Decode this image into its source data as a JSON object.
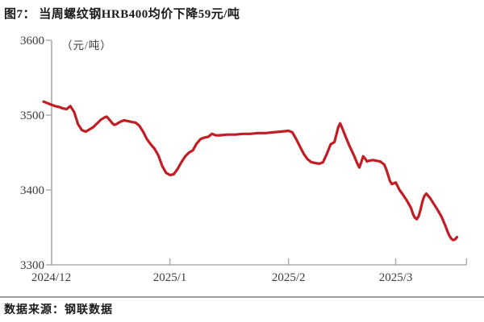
{
  "title": "图7： 当周螺纹钢HRB400均价下降59元/吨",
  "footer": {
    "source": "数据来源：钢联数据"
  },
  "chart_data": {
    "type": "line",
    "title": "当周螺纹钢HRB400均价下降59元/吨",
    "unit_label": "（元/吨）",
    "ylabel": "元/吨",
    "ylim": [
      3300,
      3600
    ],
    "yticks": [
      3600,
      3500,
      3400,
      3300
    ],
    "xticks": [
      {
        "label": "2024/12",
        "day": 0
      },
      {
        "label": "2025/1",
        "day": 31
      },
      {
        "label": "2025/2",
        "day": 62
      },
      {
        "label": "2025/3",
        "day": 90
      }
    ],
    "axis_end_day": 108.5,
    "grid": false,
    "legend": "none",
    "line_color": "#c01e24",
    "axis_color": "#ababab",
    "tick_label_color": "#3c3c3c",
    "series": [
      {
        "name": "螺纹钢HRB400均价(元/吨)",
        "points": [
          [
            -2,
            3518
          ],
          [
            -1,
            3516
          ],
          [
            0,
            3514
          ],
          [
            1,
            3512
          ],
          [
            2,
            3511
          ],
          [
            3,
            3509
          ],
          [
            4,
            3508
          ],
          [
            5,
            3512
          ],
          [
            6,
            3504
          ],
          [
            7,
            3488
          ],
          [
            8,
            3480
          ],
          [
            9,
            3478
          ],
          [
            10,
            3481
          ],
          [
            11,
            3484
          ],
          [
            12,
            3489
          ],
          [
            13,
            3494
          ],
          [
            14,
            3497
          ],
          [
            14.5,
            3498
          ],
          [
            15,
            3495
          ],
          [
            16,
            3489
          ],
          [
            16.5,
            3487
          ],
          [
            17,
            3488
          ],
          [
            18,
            3491
          ],
          [
            19,
            3493
          ],
          [
            20,
            3492
          ],
          [
            21,
            3491
          ],
          [
            22,
            3490
          ],
          [
            23,
            3486
          ],
          [
            24,
            3478
          ],
          [
            25,
            3468
          ],
          [
            26,
            3461
          ],
          [
            27,
            3455
          ],
          [
            28,
            3446
          ],
          [
            29,
            3432
          ],
          [
            30,
            3423
          ],
          [
            31,
            3420
          ],
          [
            32,
            3421
          ],
          [
            33,
            3428
          ],
          [
            34,
            3437
          ],
          [
            35,
            3445
          ],
          [
            36,
            3450
          ],
          [
            37,
            3453
          ],
          [
            38,
            3462
          ],
          [
            39,
            3468
          ],
          [
            40,
            3470
          ],
          [
            41,
            3471
          ],
          [
            42,
            3475
          ],
          [
            43,
            3473
          ],
          [
            44,
            3473
          ],
          [
            46,
            3474
          ],
          [
            48,
            3474
          ],
          [
            50,
            3475
          ],
          [
            52,
            3475
          ],
          [
            54,
            3476
          ],
          [
            56,
            3476
          ],
          [
            58,
            3477
          ],
          [
            60,
            3478
          ],
          [
            62,
            3479
          ],
          [
            63,
            3477
          ],
          [
            64,
            3468
          ],
          [
            65,
            3458
          ],
          [
            66,
            3448
          ],
          [
            67,
            3441
          ],
          [
            68,
            3437
          ],
          [
            69,
            3436
          ],
          [
            70,
            3435
          ],
          [
            71,
            3437
          ],
          [
            72,
            3448
          ],
          [
            73,
            3461
          ],
          [
            74,
            3464
          ],
          [
            75,
            3484
          ],
          [
            75.5,
            3489
          ],
          [
            76,
            3483
          ],
          [
            77,
            3470
          ],
          [
            78,
            3458
          ],
          [
            79,
            3447
          ],
          [
            80,
            3435
          ],
          [
            80.5,
            3430
          ],
          [
            81,
            3437
          ],
          [
            81.5,
            3445
          ],
          [
            82,
            3442
          ],
          [
            82.5,
            3438
          ],
          [
            83,
            3439
          ],
          [
            84,
            3440
          ],
          [
            85,
            3439
          ],
          [
            86,
            3438
          ],
          [
            87,
            3434
          ],
          [
            87.5,
            3428
          ],
          [
            88,
            3420
          ],
          [
            88.5,
            3412
          ],
          [
            89,
            3408
          ],
          [
            90,
            3410
          ],
          [
            91,
            3400
          ],
          [
            92,
            3393
          ],
          [
            93,
            3385
          ],
          [
            94,
            3376
          ],
          [
            94.5,
            3368
          ],
          [
            95,
            3363
          ],
          [
            95.5,
            3361
          ],
          [
            96,
            3365
          ],
          [
            96.5,
            3374
          ],
          [
            97,
            3385
          ],
          [
            97.5,
            3392
          ],
          [
            98,
            3395
          ],
          [
            98.5,
            3392
          ],
          [
            99,
            3389
          ],
          [
            100,
            3381
          ],
          [
            101,
            3373
          ],
          [
            102,
            3364
          ],
          [
            103,
            3352
          ],
          [
            103.5,
            3345
          ],
          [
            104,
            3339
          ],
          [
            104.5,
            3335
          ],
          [
            105,
            3333
          ],
          [
            105.5,
            3334
          ],
          [
            106,
            3337
          ]
        ]
      }
    ]
  }
}
